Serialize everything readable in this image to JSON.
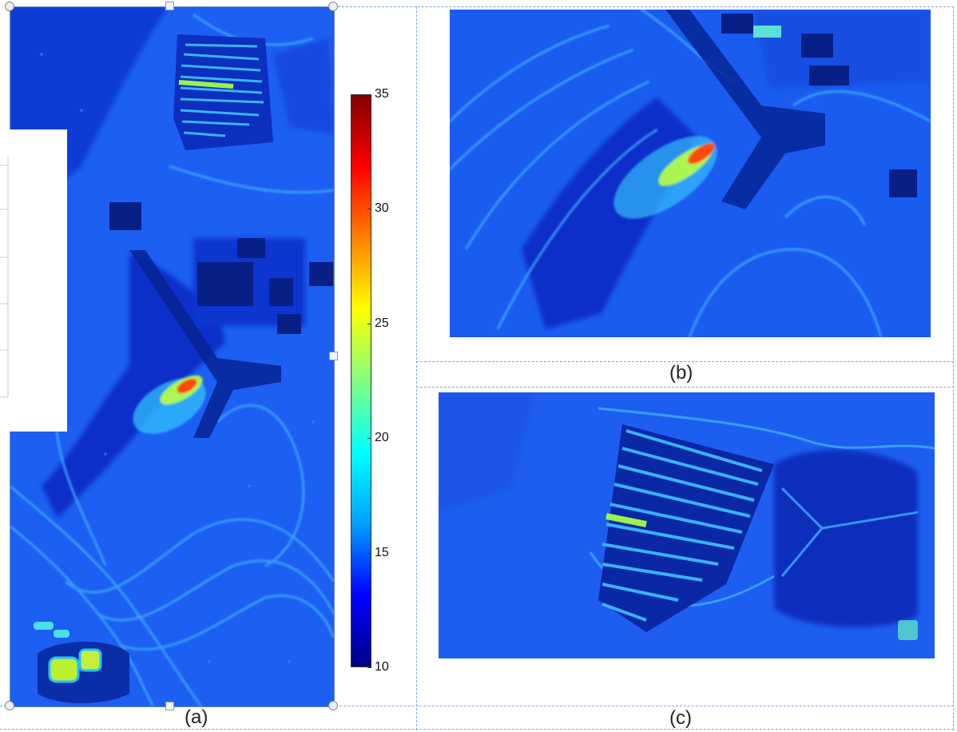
{
  "captions": {
    "a": "(a)",
    "b": "(b)",
    "c": "(c)"
  },
  "colorbar": {
    "min": 10,
    "max": 35,
    "tick_labels": [
      "35",
      "30",
      "25",
      "20",
      "15",
      "10"
    ],
    "colormap": "jet",
    "colors": [
      "#000088",
      "#0000ff",
      "#00a0ff",
      "#00ffff",
      "#80ff80",
      "#ffff00",
      "#ff8000",
      "#ff0000",
      "#800000"
    ]
  },
  "colors": {
    "background_blue": "#1a5cf0",
    "guide_dashed": "#7fa7d8",
    "selection_border": "#6a8fbf"
  }
}
